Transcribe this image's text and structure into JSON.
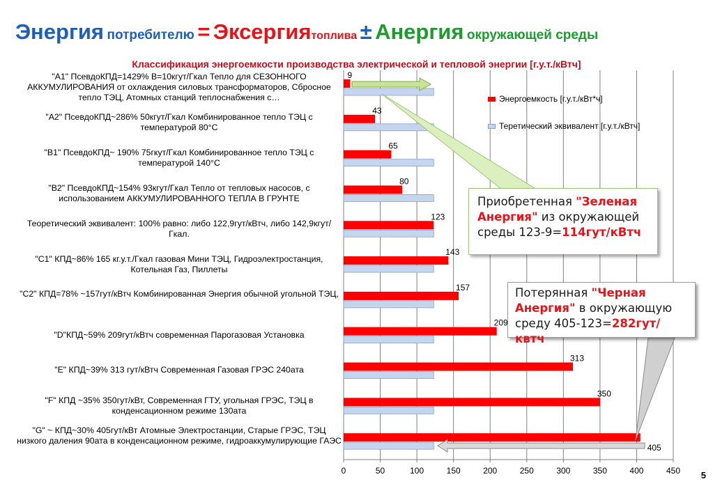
{
  "slide": {
    "title": {
      "part1": "Энергия",
      "part2": "потребителю",
      "part3": "=",
      "part4": "Эксергия",
      "part5": "топлива",
      "part6": "±",
      "part7": "Анергия",
      "part8": "окружающей среды"
    },
    "subtitle": "Классификация  энергоемкости  производства электрической и тепловой энергии [г.у.т./кВтч]",
    "page_number": "5",
    "callout_green": {
      "text1": "Приобретенная ",
      "highlight": "\"Зеленая Анергия\"",
      "text2": " из окружающей среды 123-9=",
      "result": "114гут/кВтч"
    },
    "callout_black": {
      "text1": "Потерянная ",
      "highlight": "\"Черная Анергия\"",
      "text2": " в окружающую среду  405-123=",
      "result": "282гут/квтч"
    },
    "colors": {
      "title_blue": "#1f5fb4",
      "title_red": "#e3151b",
      "title_green": "#1f9a2f",
      "bar_red": "#ff0000",
      "bar_blue": "#c6d5ee",
      "grid": "#808080"
    }
  },
  "chart_data": {
    "type": "bar",
    "orientation": "horizontal",
    "categories": [
      "\"А1\"   ПсевдоКПД=1429%  В=10кгут/Гкал  Тепло для СЕЗОННОГО АККУМУЛИРОВАНИЯ от охлаждения силовых  трансформаторов, Сбросное тепло ТЭЦ, Атомных станций теплоснабжения с…",
      "\"А2\"   ПсевдоКПД~286% 50кгут/Гкал  Комбинированное тепло ТЭЦ с температурой  80°С",
      "\"В1\" ПсевдоКПД~ 190% 75гкут/Гкал Комбинированное тепло ТЭЦ с температурой 140°С",
      "\"В2\" ПсевдоКПД~154%  93кгут/Гкал   Тепло от тепловых насосов, с использованием  АККУМУЛИРОВАННОГО ТЕПЛА В ГРУНТЕ",
      "Теоретический  эквивалент:   100% равно: либо 122,9гут/кВтч,  либо 142,9кгут/Гкал.",
      "\"С1\"  КПД~86% 165 кг.у.т./Гкал  газовая Мини ТЭЦ, Гидроэлектростанция, Котельная Газ, Пиллеты",
      "\"С2\" КПД=78% ~157гут/кВтч  Комбинированная Энергия обычной угольной ТЭЦ,",
      "\"D\"КПД~59% 209гут/кВтч  современная Парогазовая Установка",
      "\"E\"  КПД~39%  313 гут/кВтч  Современная Газовая ГРЭС 240ата",
      "\"F\" КПД ~35% 350гут/кВт, Современная  ГТУ, угольная ГРЭС, ТЭЦ в конденсационном  режиме 130ата",
      "\"G\"  ~ КПД~30% 405гут/кВт   Атомные Электростанции, Старые ГРЭС, ТЭЦ низкого даления  90ата в конденсационном режиме, гидроаккумулирующие ГАЭС"
    ],
    "series": [
      {
        "name": "Энергоемкость [г.у.т./кВт*ч]",
        "values": [
          9,
          43,
          65,
          80,
          123,
          143,
          157,
          209,
          313,
          350,
          405
        ]
      },
      {
        "name": "Теретический эквивалент [г.у.т./кВтч]",
        "values": [
          123,
          123,
          123,
          123,
          123,
          123,
          123,
          123,
          123,
          123,
          123
        ]
      }
    ],
    "data_labels": [
      "9",
      "43",
      "65",
      "80",
      "123",
      "143",
      "157",
      "209",
      "313",
      "350",
      "405"
    ],
    "xlim": [
      0,
      450
    ],
    "xticks": [
      "0",
      "50",
      "100",
      "150",
      "200",
      "250",
      "300",
      "350",
      "400",
      "450"
    ],
    "grid": true,
    "legend_placement": "top-right"
  }
}
